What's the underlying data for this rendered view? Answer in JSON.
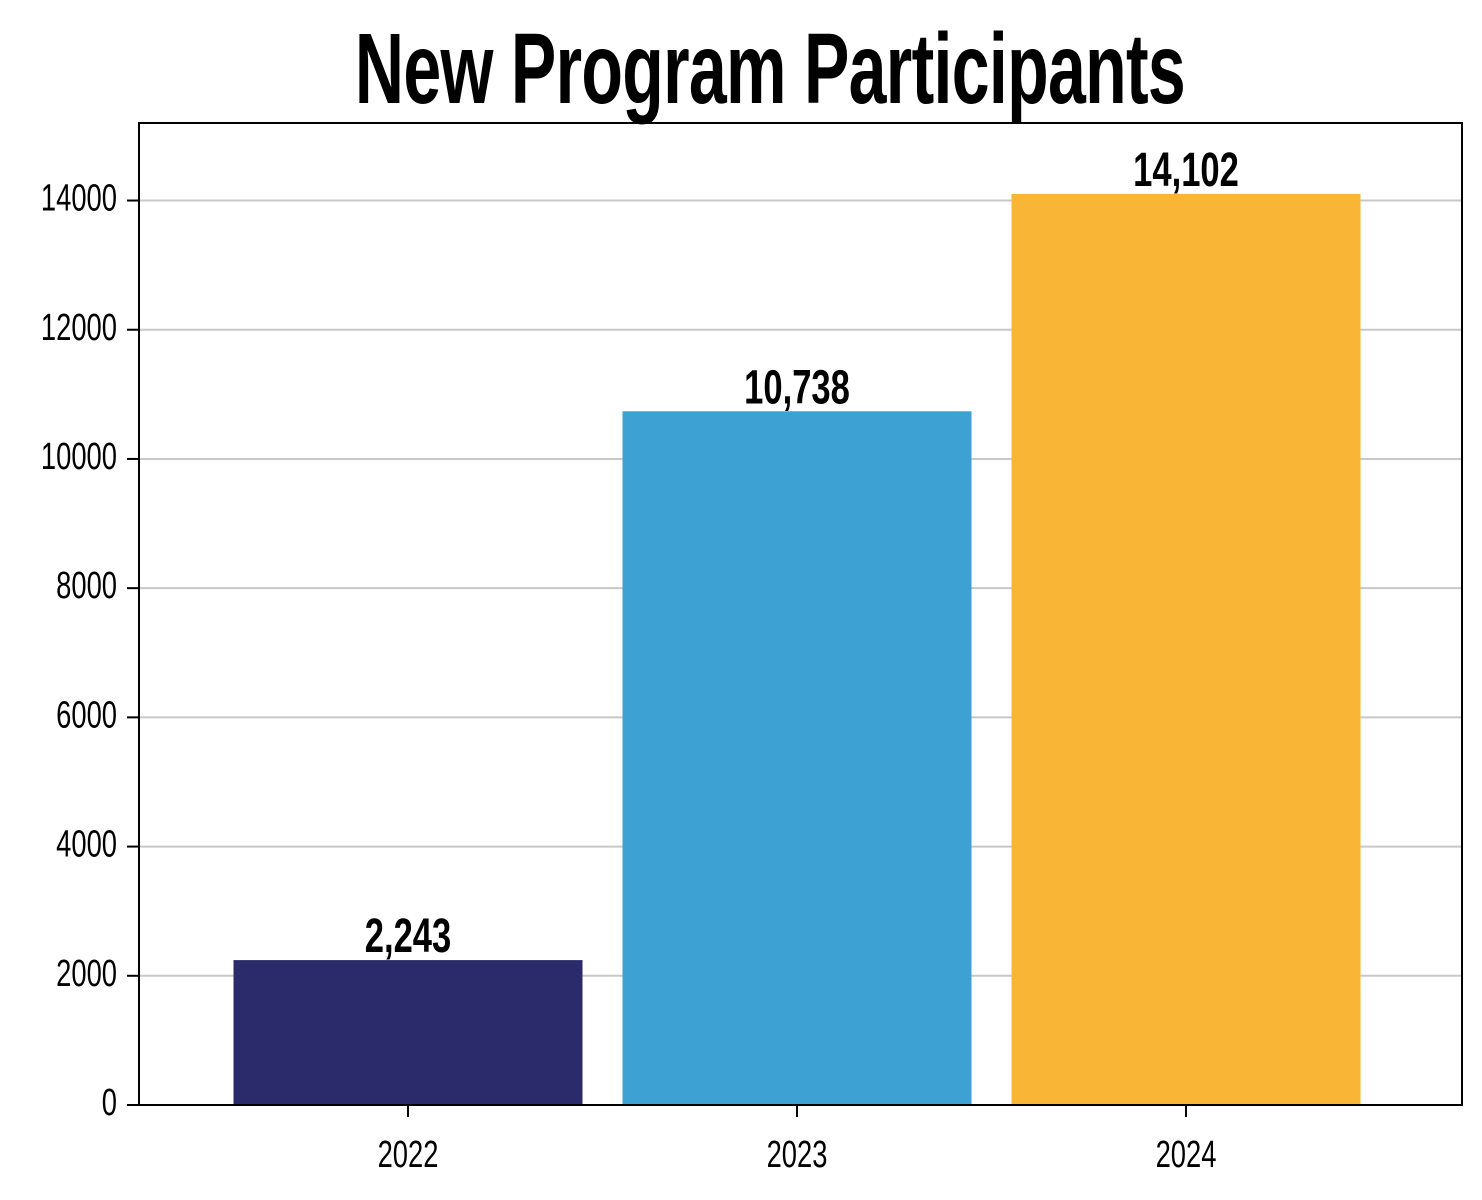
{
  "chart_data": {
    "type": "bar",
    "title": "New Program Participants",
    "categories": [
      "2022",
      "2023",
      "2024"
    ],
    "values": [
      2243,
      10738,
      14102
    ],
    "data_labels": [
      "2,243",
      "10,738",
      "14,102"
    ],
    "bar_colors": [
      "#2B2B6B",
      "#3DA1D4",
      "#F9B536"
    ],
    "ylim": [
      0,
      15200
    ],
    "yticks": [
      0,
      2000,
      4000,
      6000,
      8000,
      10000,
      12000,
      14000
    ],
    "ytick_labels": [
      "0",
      "2000",
      "4000",
      "6000",
      "8000",
      "10000",
      "12000",
      "14000"
    ],
    "xlabel": "",
    "ylabel": "",
    "grid": "horizontal",
    "legend": "none"
  }
}
